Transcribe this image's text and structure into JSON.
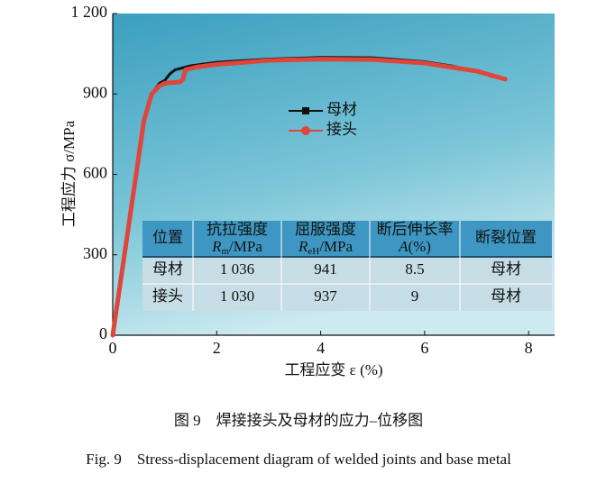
{
  "chart_data": {
    "type": "line",
    "ylabel": "工程应力 σ/MPa",
    "xlabel": "工程应变 ε (%)",
    "caption_cn": "图 9　焊接接头及母材的应力–位移图",
    "caption_en": "Fig. 9　Stress-displacement diagram of welded joints and base metal",
    "xlim": [
      0,
      8.5
    ],
    "ylim": [
      0,
      1200
    ],
    "xticks": [
      0,
      2,
      4,
      6,
      8
    ],
    "yticks": [
      0,
      300,
      600,
      900,
      {
        "value": 1200,
        "label": "1 200"
      }
    ],
    "series": [
      {
        "name": "母材",
        "color": "#111111",
        "x": [
          0,
          0.3,
          0.6,
          0.75,
          0.9,
          1.0,
          1.1,
          1.2,
          1.5,
          2,
          3,
          4,
          5,
          6,
          6.5,
          7,
          7.3
        ],
        "values": [
          0,
          400,
          800,
          900,
          940,
          950,
          975,
          990,
          1005,
          1018,
          1030,
          1036,
          1035,
          1020,
          1005,
          985,
          965
        ]
      },
      {
        "name": "接头",
        "color": "#e0453a",
        "x": [
          0,
          0.3,
          0.6,
          0.75,
          0.9,
          1.0,
          1.3,
          1.35,
          1.4,
          1.6,
          2,
          3,
          4,
          5,
          6,
          7,
          7.55
        ],
        "values": [
          0,
          400,
          800,
          900,
          930,
          940,
          945,
          955,
          990,
          1000,
          1010,
          1025,
          1030,
          1028,
          1015,
          985,
          955
        ]
      }
    ],
    "table": {
      "header": [
        {
          "text": "位置"
        },
        {
          "text": "抗拉强度",
          "symbol": "R",
          "sub": "m",
          "unit": "/MPa"
        },
        {
          "text": "屈服强度",
          "symbol": "R",
          "sub": "eH",
          "unit": "/MPa"
        },
        {
          "text": "断后伸长率",
          "symbol": "A",
          "unit": "(%)"
        },
        {
          "text": "断裂位置"
        }
      ],
      "rows": [
        [
          "母材",
          "1 036",
          "941",
          "8.5",
          "母材"
        ],
        [
          "接头",
          "1 030",
          "937",
          "9",
          "母材"
        ]
      ]
    }
  }
}
